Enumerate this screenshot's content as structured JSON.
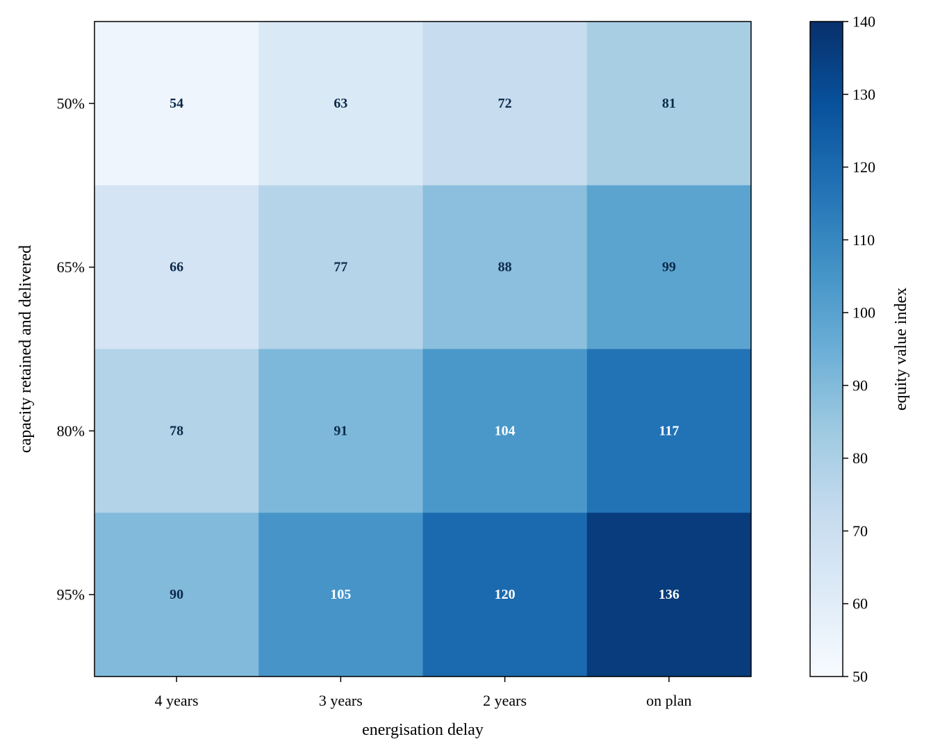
{
  "chart_data": {
    "type": "heatmap",
    "title": "",
    "xlabel": "energisation delay",
    "ylabel": "capacity retained and delivered",
    "x_categories": [
      "4 years",
      "3 years",
      "2 years",
      "on plan"
    ],
    "y_categories": [
      "50%",
      "65%",
      "80%",
      "95%"
    ],
    "values": [
      [
        54,
        63,
        72,
        81
      ],
      [
        66,
        77,
        88,
        99
      ],
      [
        78,
        91,
        104,
        117
      ],
      [
        90,
        105,
        120,
        136
      ]
    ],
    "cell_labels": [
      [
        "54",
        "63",
        "72",
        "81"
      ],
      [
        "66",
        "77",
        "88",
        "99"
      ],
      [
        "78",
        "91",
        "104",
        "117"
      ],
      [
        "90",
        "105",
        "120",
        "136"
      ]
    ],
    "colormap": "Blues",
    "colors": {
      "dark_text": "#0c2a4a",
      "light_text": "#ffffff",
      "cmap_light": "#f7fbff",
      "cmap_dark": "#08306b"
    },
    "colorbar": {
      "label": "equity value index",
      "vmin": 50,
      "vmax": 140,
      "ticks": [
        50,
        60,
        70,
        80,
        90,
        100,
        110,
        120,
        130,
        140
      ],
      "tick_labels": [
        "50",
        "60",
        "70",
        "80",
        "90",
        "100",
        "110",
        "120",
        "130",
        "140"
      ]
    },
    "grid": false,
    "legend": "colorbar right"
  }
}
